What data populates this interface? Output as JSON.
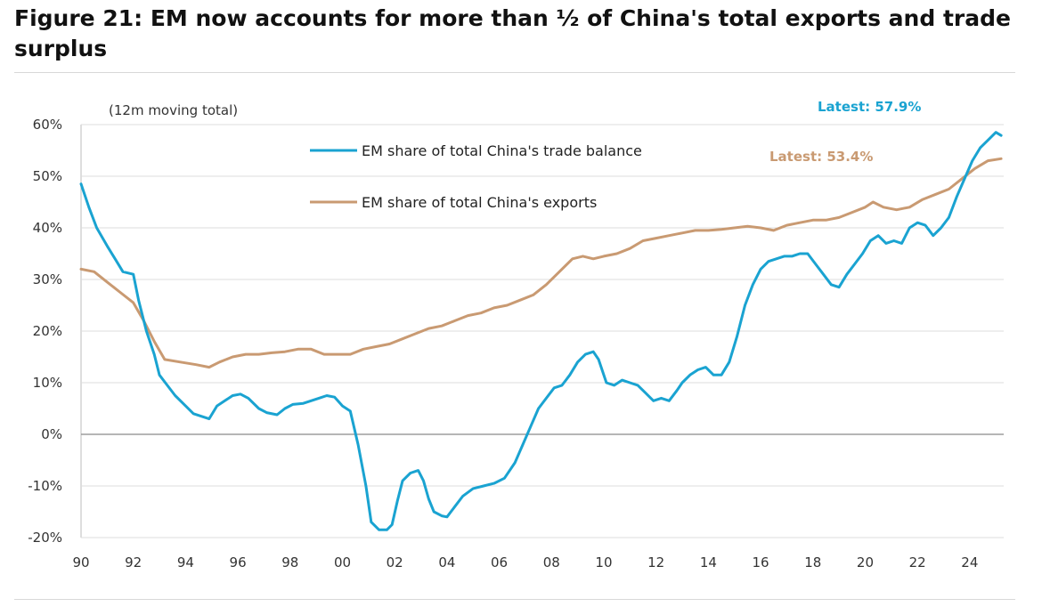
{
  "title": "Figure 21: EM now accounts for more than ½ of China's total exports and trade surplus",
  "footer_text": "",
  "chart_data": {
    "type": "line",
    "note": "(12m moving total)",
    "x_unit": "year",
    "xlim": [
      1990,
      2025.3
    ],
    "ylim": [
      -20,
      60
    ],
    "y_ticks": [
      60,
      50,
      40,
      30,
      20,
      10,
      0,
      -10,
      -20
    ],
    "y_tick_labels": [
      "60%",
      "50%",
      "40%",
      "30%",
      "20%",
      "10%",
      "0%",
      "-10%",
      "-20%"
    ],
    "x_ticks": [
      1990,
      1992,
      1994,
      1996,
      1998,
      2000,
      2002,
      2004,
      2006,
      2008,
      2010,
      2012,
      2014,
      2016,
      2018,
      2020,
      2022,
      2024
    ],
    "x_tick_labels": [
      "90",
      "92",
      "94",
      "96",
      "98",
      "00",
      "02",
      "04",
      "06",
      "08",
      "10",
      "12",
      "14",
      "16",
      "18",
      "20",
      "22",
      "24"
    ],
    "grid": "horizontal",
    "zero_line": true,
    "legend_position": "top-left",
    "series": [
      {
        "name": "EM share of total China's trade balance",
        "color": "#1aa3d1",
        "latest_label": "Latest: 57.9%",
        "x": [
          1990.0,
          1990.3,
          1990.6,
          1991.0,
          1991.3,
          1991.6,
          1992.0,
          1992.2,
          1992.5,
          1992.8,
          1993.0,
          1993.3,
          1993.6,
          1994.0,
          1994.3,
          1994.6,
          1994.9,
          1995.2,
          1995.5,
          1995.8,
          1996.1,
          1996.4,
          1996.8,
          1997.1,
          1997.5,
          1997.8,
          1998.1,
          1998.5,
          1998.8,
          1999.1,
          1999.4,
          1999.7,
          2000.0,
          2000.3,
          2000.6,
          2000.9,
          2001.1,
          2001.4,
          2001.7,
          2001.9,
          2002.1,
          2002.3,
          2002.6,
          2002.9,
          2003.1,
          2003.3,
          2003.5,
          2003.8,
          2004.0,
          2004.3,
          2004.6,
          2005.0,
          2005.4,
          2005.8,
          2006.2,
          2006.6,
          2006.9,
          2007.2,
          2007.5,
          2007.8,
          2008.1,
          2008.4,
          2008.7,
          2009.0,
          2009.3,
          2009.6,
          2009.8,
          2010.1,
          2010.4,
          2010.7,
          2011.0,
          2011.3,
          2011.6,
          2011.9,
          2012.2,
          2012.5,
          2012.8,
          2013.0,
          2013.3,
          2013.6,
          2013.9,
          2014.2,
          2014.5,
          2014.8,
          2015.1,
          2015.4,
          2015.7,
          2016.0,
          2016.3,
          2016.6,
          2016.9,
          2017.2,
          2017.5,
          2017.8,
          2018.1,
          2018.4,
          2018.7,
          2019.0,
          2019.3,
          2019.6,
          2019.9,
          2020.2,
          2020.5,
          2020.8,
          2021.1,
          2021.4,
          2021.7,
          2022.0,
          2022.3,
          2022.6,
          2022.9,
          2023.2,
          2023.5,
          2023.8,
          2024.1,
          2024.4,
          2024.7,
          2025.0,
          2025.2
        ],
        "y": [
          48.5,
          44.0,
          40.0,
          36.5,
          34.0,
          31.5,
          31.0,
          26.0,
          20.0,
          15.5,
          11.5,
          9.5,
          7.5,
          5.5,
          4.0,
          3.5,
          3.0,
          5.5,
          6.5,
          7.5,
          7.8,
          7.0,
          5.0,
          4.2,
          3.8,
          5.0,
          5.8,
          6.0,
          6.5,
          7.0,
          7.5,
          7.2,
          5.5,
          4.5,
          -2.0,
          -10.0,
          -17.0,
          -18.5,
          -18.5,
          -17.5,
          -13.0,
          -9.0,
          -7.5,
          -7.0,
          -9.0,
          -12.5,
          -15.0,
          -15.8,
          -16.0,
          -14.0,
          -12.0,
          -10.5,
          -10.0,
          -9.5,
          -8.5,
          -5.5,
          -2.0,
          1.5,
          5.0,
          7.0,
          9.0,
          9.5,
          11.5,
          14.0,
          15.5,
          16.0,
          14.5,
          10.0,
          9.5,
          10.5,
          10.0,
          9.5,
          8.0,
          6.5,
          7.0,
          6.5,
          8.5,
          10.0,
          11.5,
          12.5,
          13.0,
          11.5,
          11.5,
          14.0,
          19.0,
          25.0,
          29.0,
          32.0,
          33.5,
          34.0,
          34.5,
          34.5,
          35.0,
          35.0,
          33.0,
          31.0,
          29.0,
          28.5,
          31.0,
          33.0,
          35.0,
          37.5,
          38.5,
          37.0,
          37.5,
          37.0,
          40.0,
          41.0,
          40.5,
          38.5,
          40.0,
          42.0,
          46.0,
          49.5,
          53.0,
          55.5,
          57.0,
          58.5,
          57.9
        ]
      },
      {
        "name": "EM share of total China's exports",
        "color": "#c99a72",
        "latest_label": "Latest: 53.4%",
        "x": [
          1990.0,
          1990.5,
          1991.0,
          1991.5,
          1992.0,
          1992.4,
          1992.8,
          1993.2,
          1993.8,
          1994.4,
          1994.9,
          1995.3,
          1995.8,
          1996.3,
          1996.8,
          1997.3,
          1997.8,
          1998.3,
          1998.8,
          1999.3,
          1999.8,
          2000.3,
          2000.8,
          2001.3,
          2001.8,
          2002.3,
          2002.8,
          2003.3,
          2003.8,
          2004.3,
          2004.8,
          2005.3,
          2005.8,
          2006.3,
          2006.8,
          2007.3,
          2007.8,
          2008.3,
          2008.8,
          2009.2,
          2009.6,
          2010.0,
          2010.5,
          2011.0,
          2011.5,
          2012.0,
          2012.5,
          2013.0,
          2013.5,
          2014.0,
          2014.5,
          2015.0,
          2015.5,
          2016.0,
          2016.5,
          2017.0,
          2017.5,
          2018.0,
          2018.5,
          2019.0,
          2019.5,
          2020.0,
          2020.3,
          2020.7,
          2021.2,
          2021.7,
          2022.2,
          2022.7,
          2023.2,
          2023.7,
          2024.2,
          2024.7,
          2025.2
        ],
        "y": [
          32.0,
          31.5,
          29.5,
          27.5,
          25.5,
          22.0,
          18.0,
          14.5,
          14.0,
          13.5,
          13.0,
          14.0,
          15.0,
          15.5,
          15.5,
          15.8,
          16.0,
          16.5,
          16.5,
          15.5,
          15.5,
          15.5,
          16.5,
          17.0,
          17.5,
          18.5,
          19.5,
          20.5,
          21.0,
          22.0,
          23.0,
          23.5,
          24.5,
          25.0,
          26.0,
          27.0,
          29.0,
          31.5,
          34.0,
          34.5,
          34.0,
          34.5,
          35.0,
          36.0,
          37.5,
          38.0,
          38.5,
          39.0,
          39.5,
          39.5,
          39.7,
          40.0,
          40.3,
          40.0,
          39.5,
          40.5,
          41.0,
          41.5,
          41.5,
          42.0,
          43.0,
          44.0,
          45.0,
          44.0,
          43.5,
          44.0,
          45.5,
          46.5,
          47.5,
          49.5,
          51.5,
          53.0,
          53.4
        ]
      }
    ]
  }
}
